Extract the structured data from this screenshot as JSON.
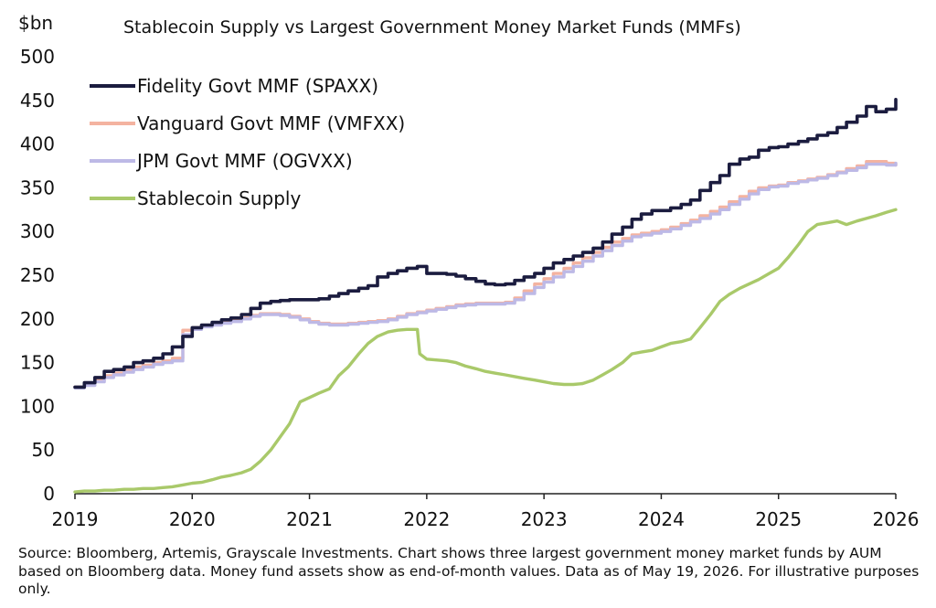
{
  "chart_data": {
    "type": "line",
    "title": "Stablecoin Supply vs Largest Government Money Market Funds (MMFs)",
    "unit_label": "$bn",
    "ylim": [
      0,
      500
    ],
    "yticks": [
      0,
      50,
      100,
      150,
      200,
      250,
      300,
      350,
      400,
      450,
      500
    ],
    "xlim": [
      2019,
      2026
    ],
    "xticks": [
      2019,
      2020,
      2021,
      2022,
      2023,
      2024,
      2025,
      2026
    ],
    "legend_position": "top-left",
    "grid": false,
    "series": [
      {
        "name": "Fidelity Govt MMF (SPAXX)",
        "color": "#1b1c3f",
        "step": true,
        "x": [
          2019.0,
          2019.08,
          2019.17,
          2019.25,
          2019.33,
          2019.42,
          2019.5,
          2019.58,
          2019.67,
          2019.75,
          2019.83,
          2019.92,
          2020.0,
          2020.08,
          2020.17,
          2020.25,
          2020.33,
          2020.42,
          2020.5,
          2020.58,
          2020.67,
          2020.75,
          2020.83,
          2020.92,
          2021.0,
          2021.08,
          2021.17,
          2021.25,
          2021.33,
          2021.42,
          2021.5,
          2021.58,
          2021.67,
          2021.75,
          2021.83,
          2021.92,
          2022.0,
          2022.08,
          2022.17,
          2022.25,
          2022.33,
          2022.42,
          2022.5,
          2022.58,
          2022.67,
          2022.75,
          2022.83,
          2022.92,
          2023.0,
          2023.08,
          2023.17,
          2023.25,
          2023.33,
          2023.42,
          2023.5,
          2023.58,
          2023.67,
          2023.75,
          2023.83,
          2023.92,
          2024.0,
          2024.08,
          2024.17,
          2024.25,
          2024.33,
          2024.42,
          2024.5,
          2024.58,
          2024.67,
          2024.75,
          2024.83,
          2024.92,
          2025.0,
          2025.08,
          2025.17,
          2025.25,
          2025.33,
          2025.42,
          2025.5,
          2025.58,
          2025.67,
          2025.75,
          2025.83,
          2025.92,
          2026.0
        ],
        "values": [
          122,
          127,
          133,
          140,
          142,
          145,
          150,
          152,
          155,
          160,
          168,
          180,
          190,
          193,
          196,
          199,
          201,
          205,
          212,
          218,
          220,
          221,
          222,
          222,
          222,
          223,
          226,
          229,
          232,
          235,
          238,
          248,
          252,
          255,
          258,
          260,
          252,
          252,
          251,
          249,
          246,
          243,
          240,
          239,
          240,
          244,
          248,
          252,
          258,
          264,
          268,
          272,
          276,
          281,
          288,
          297,
          305,
          314,
          320,
          324,
          324,
          327,
          331,
          336,
          347,
          356,
          364,
          377,
          383,
          385,
          393,
          396,
          397,
          400,
          403,
          406,
          410,
          413,
          419,
          425,
          432,
          443,
          437,
          440,
          451
        ]
      },
      {
        "name": "Vanguard Govt MMF (VMFXX)",
        "color": "#f4b3a0",
        "step": true,
        "x": [
          2019.0,
          2019.08,
          2019.17,
          2019.25,
          2019.33,
          2019.42,
          2019.5,
          2019.58,
          2019.67,
          2019.75,
          2019.83,
          2019.92,
          2020.0,
          2020.08,
          2020.17,
          2020.25,
          2020.33,
          2020.42,
          2020.5,
          2020.58,
          2020.67,
          2020.75,
          2020.83,
          2020.92,
          2021.0,
          2021.08,
          2021.17,
          2021.25,
          2021.33,
          2021.42,
          2021.5,
          2021.58,
          2021.67,
          2021.75,
          2021.83,
          2021.92,
          2022.0,
          2022.08,
          2022.17,
          2022.25,
          2022.33,
          2022.42,
          2022.5,
          2022.58,
          2022.67,
          2022.75,
          2022.83,
          2022.92,
          2023.0,
          2023.08,
          2023.17,
          2023.25,
          2023.33,
          2023.42,
          2023.5,
          2023.58,
          2023.67,
          2023.75,
          2023.83,
          2023.92,
          2024.0,
          2024.08,
          2024.17,
          2024.25,
          2024.33,
          2024.42,
          2024.5,
          2024.58,
          2024.67,
          2024.75,
          2024.83,
          2024.92,
          2025.0,
          2025.08,
          2025.17,
          2025.25,
          2025.33,
          2025.42,
          2025.5,
          2025.58,
          2025.67,
          2025.75,
          2025.83,
          2025.92,
          2026.0
        ],
        "values": [
          122,
          125,
          130,
          135,
          138,
          141,
          145,
          147,
          150,
          152,
          155,
          187,
          190,
          192,
          194,
          196,
          198,
          201,
          204,
          206,
          206,
          205,
          203,
          200,
          197,
          195,
          194,
          194,
          195,
          196,
          197,
          198,
          200,
          203,
          206,
          208,
          210,
          212,
          214,
          216,
          217,
          218,
          218,
          218,
          219,
          224,
          232,
          240,
          246,
          252,
          258,
          264,
          270,
          276,
          282,
          288,
          292,
          296,
          298,
          300,
          302,
          305,
          309,
          313,
          318,
          323,
          328,
          334,
          340,
          346,
          350,
          352,
          353,
          356,
          358,
          360,
          362,
          365,
          368,
          372,
          375,
          380,
          380,
          378,
          376
        ]
      },
      {
        "name": "JPM Govt MMF (OGVXX)",
        "color": "#bdb9e6",
        "step": true,
        "x": [
          2019.0,
          2019.08,
          2019.17,
          2019.25,
          2019.33,
          2019.42,
          2019.5,
          2019.58,
          2019.67,
          2019.75,
          2019.83,
          2019.92,
          2020.0,
          2020.08,
          2020.17,
          2020.25,
          2020.33,
          2020.42,
          2020.5,
          2020.58,
          2020.67,
          2020.75,
          2020.83,
          2020.92,
          2021.0,
          2021.08,
          2021.17,
          2021.25,
          2021.33,
          2021.42,
          2021.5,
          2021.58,
          2021.67,
          2021.75,
          2021.83,
          2021.92,
          2022.0,
          2022.08,
          2022.17,
          2022.25,
          2022.33,
          2022.42,
          2022.5,
          2022.58,
          2022.67,
          2022.75,
          2022.83,
          2022.92,
          2023.0,
          2023.08,
          2023.17,
          2023.25,
          2023.33,
          2023.42,
          2023.5,
          2023.58,
          2023.67,
          2023.75,
          2023.83,
          2023.92,
          2024.0,
          2024.08,
          2024.17,
          2024.25,
          2024.33,
          2024.42,
          2024.5,
          2024.58,
          2024.67,
          2024.75,
          2024.83,
          2024.92,
          2025.0,
          2025.08,
          2025.17,
          2025.25,
          2025.33,
          2025.42,
          2025.5,
          2025.58,
          2025.67,
          2025.75,
          2025.83,
          2025.92,
          2026.0
        ],
        "values": [
          121,
          124,
          128,
          133,
          136,
          139,
          142,
          145,
          148,
          150,
          152,
          182,
          188,
          191,
          193,
          195,
          197,
          200,
          203,
          205,
          205,
          204,
          202,
          199,
          196,
          194,
          193,
          193,
          194,
          195,
          196,
          197,
          199,
          202,
          205,
          207,
          209,
          211,
          213,
          215,
          216,
          217,
          217,
          217,
          218,
          222,
          229,
          236,
          242,
          248,
          254,
          260,
          266,
          272,
          278,
          284,
          289,
          294,
          296,
          298,
          300,
          303,
          307,
          311,
          315,
          320,
          325,
          331,
          337,
          343,
          348,
          351,
          352,
          355,
          357,
          359,
          361,
          364,
          367,
          370,
          373,
          377,
          377,
          376,
          378
        ]
      },
      {
        "name": "Stablecoin Supply",
        "color": "#a9c96a",
        "step": false,
        "x": [
          2019.0,
          2019.08,
          2019.17,
          2019.25,
          2019.33,
          2019.42,
          2019.5,
          2019.58,
          2019.67,
          2019.75,
          2019.83,
          2019.92,
          2020.0,
          2020.08,
          2020.17,
          2020.25,
          2020.33,
          2020.42,
          2020.5,
          2020.58,
          2020.67,
          2020.75,
          2020.83,
          2020.92,
          2021.0,
          2021.08,
          2021.17,
          2021.25,
          2021.33,
          2021.42,
          2021.5,
          2021.58,
          2021.67,
          2021.75,
          2021.83,
          2021.92,
          2021.94,
          2022.0,
          2022.08,
          2022.17,
          2022.25,
          2022.33,
          2022.42,
          2022.5,
          2022.58,
          2022.67,
          2022.75,
          2022.83,
          2022.92,
          2023.0,
          2023.08,
          2023.17,
          2023.25,
          2023.33,
          2023.42,
          2023.5,
          2023.58,
          2023.67,
          2023.75,
          2023.83,
          2023.92,
          2024.0,
          2024.08,
          2024.17,
          2024.25,
          2024.33,
          2024.42,
          2024.5,
          2024.58,
          2024.67,
          2024.75,
          2024.83,
          2024.92,
          2025.0,
          2025.08,
          2025.17,
          2025.25,
          2025.33,
          2025.42,
          2025.5,
          2025.58,
          2025.67,
          2025.75,
          2025.83,
          2025.92,
          2026.0
        ],
        "values": [
          2,
          3,
          3,
          4,
          4,
          5,
          5,
          6,
          6,
          7,
          8,
          10,
          12,
          13,
          16,
          19,
          21,
          24,
          28,
          37,
          50,
          65,
          80,
          105,
          110,
          115,
          120,
          135,
          145,
          160,
          172,
          180,
          185,
          187,
          188,
          188,
          160,
          154,
          153,
          152,
          150,
          146,
          143,
          140,
          138,
          136,
          134,
          132,
          130,
          128,
          126,
          125,
          125,
          126,
          130,
          136,
          142,
          150,
          160,
          162,
          164,
          168,
          172,
          174,
          177,
          190,
          205,
          220,
          228,
          235,
          240,
          245,
          252,
          258,
          270,
          285,
          300,
          308,
          310,
          312,
          308,
          312,
          315,
          318,
          322,
          325
        ]
      }
    ]
  },
  "source_note": "Source: Bloomberg, Artemis, Grayscale Investments. Chart shows three largest government money market funds by AUM based on Bloomberg data. Money fund assets show as end-of-month values. Data as of May 19, 2026. For illustrative purposes only."
}
